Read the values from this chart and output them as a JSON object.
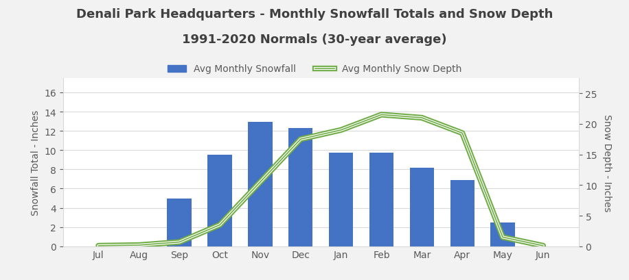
{
  "months": [
    "Jul",
    "Aug",
    "Sep",
    "Oct",
    "Nov",
    "Dec",
    "Jan",
    "Feb",
    "Mar",
    "Apr",
    "May",
    "Jun"
  ],
  "snowfall": [
    0,
    0,
    5.0,
    9.5,
    12.9,
    12.3,
    9.7,
    9.7,
    8.2,
    6.9,
    2.5,
    0
  ],
  "snow_depth": [
    0.1,
    0.2,
    0.7,
    3.5,
    10.5,
    17.5,
    19.0,
    21.5,
    21.0,
    18.5,
    1.5,
    0.1
  ],
  "bar_color": "#4472C4",
  "line_color": "#70AD47",
  "title_line1": "Denali Park Headquarters - Monthly Snowfall Totals and Snow Depth",
  "title_line2": "1991-2020 Normals (30-year average)",
  "ylabel_left": "Snowfall Total - Inches",
  "ylabel_right": "Snow Depth - Inches",
  "ylim_left": [
    0,
    17.5
  ],
  "ylim_right": [
    0,
    27.5
  ],
  "yticks_left": [
    0,
    2,
    4,
    6,
    8,
    10,
    12,
    14,
    16
  ],
  "yticks_right": [
    0,
    5,
    10,
    15,
    20,
    25
  ],
  "legend_snowfall": "Avg Monthly Snowfall",
  "legend_depth": "Avg Monthly Snow Depth",
  "background_color": "#f2f2f2",
  "plot_bg_color": "#ffffff",
  "title_color": "#404040",
  "axis_label_color": "#595959",
  "tick_color": "#595959",
  "grid_color": "#d9d9d9",
  "title_fontsize": 13,
  "label_fontsize": 10,
  "tick_fontsize": 10,
  "legend_fontsize": 10
}
